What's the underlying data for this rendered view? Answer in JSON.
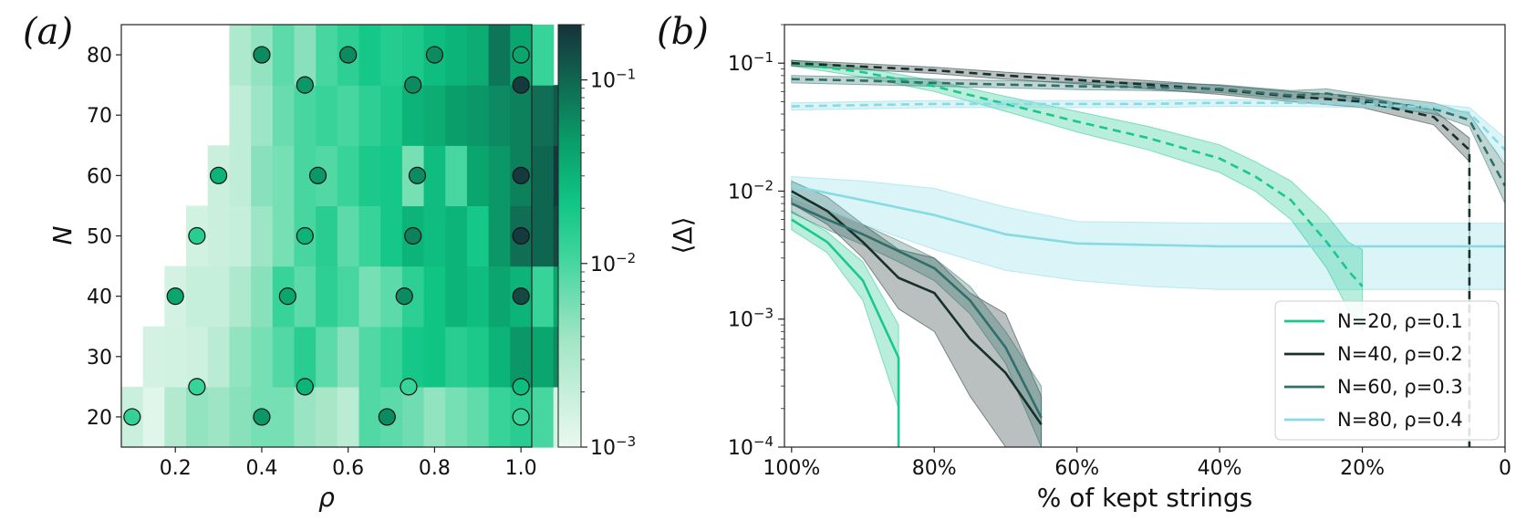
{
  "colors": {
    "n20": "#19c88a",
    "n40": "#17302c",
    "n60": "#2e6f6b",
    "n80": "#86dbe3"
  },
  "chart_data": [
    {
      "type": "heatmap",
      "panel_label": "(a)",
      "xlabel": "ρ",
      "ylabel": "N",
      "x_ticks": [
        "0.2",
        "0.4",
        "0.6",
        "0.8",
        "1.0"
      ],
      "y_ticks": [
        "20",
        "30",
        "40",
        "50",
        "60",
        "70",
        "80"
      ],
      "colorbar": {
        "scale": "log",
        "range": [
          0.001,
          0.2
        ],
        "ticks": [
          {
            "base": "10",
            "exp": "−3",
            "value": 0.001
          },
          {
            "base": "10",
            "exp": "−2",
            "value": 0.01
          },
          {
            "base": "10",
            "exp": "−1",
            "value": 0.1
          }
        ]
      },
      "rows": [
        {
          "N": 20,
          "x_start": 0.1,
          "values": [
            0.0018,
            0.0012,
            0.0028,
            0.0045,
            0.004,
            0.005,
            0.006,
            0.006,
            0.0042,
            0.0035,
            0.0025,
            0.009,
            0.008,
            0.0065,
            0.0045,
            0.006,
            0.0075,
            0.012,
            0.015,
            0.01,
            0.0015
          ]
        },
        {
          "N": 30,
          "x_start": 0.15,
          "values": [
            0.0015,
            0.0016,
            0.0017,
            0.0025,
            0.0045,
            0.006,
            0.009,
            0.015,
            0.008,
            0.005,
            0.009,
            0.012,
            0.02,
            0.022,
            0.015,
            0.018,
            0.03,
            0.05,
            0.04,
            0.06
          ]
        },
        {
          "N": 40,
          "x_start": 0.2,
          "values": [
            0.0015,
            0.002,
            0.002,
            0.003,
            0.005,
            0.012,
            0.008,
            0.014,
            0.01,
            0.006,
            0.008,
            0.014,
            0.022,
            0.03,
            0.025,
            0.04,
            0.03,
            0.012,
            0.04
          ]
        },
        {
          "N": 50,
          "x_start": 0.25,
          "values": [
            0.0016,
            0.0018,
            0.002,
            0.004,
            0.006,
            0.01,
            0.015,
            0.008,
            0.012,
            0.02,
            0.03,
            0.025,
            0.03,
            0.02,
            0.05,
            0.09,
            0.1,
            0.15
          ]
        },
        {
          "N": 60,
          "x_start": 0.3,
          "values": [
            0.0018,
            0.0022,
            0.005,
            0.006,
            0.01,
            0.009,
            0.012,
            0.018,
            0.02,
            0.006,
            0.025,
            0.01,
            0.04,
            0.05,
            0.07,
            0.1,
            0.18
          ]
        },
        {
          "N": 70,
          "x_start": 0.35,
          "values": [
            0.0022,
            0.004,
            0.007,
            0.01,
            0.012,
            0.01,
            0.014,
            0.018,
            0.03,
            0.035,
            0.045,
            0.05,
            0.06,
            0.07,
            0.09,
            0.12
          ]
        },
        {
          "N": 80,
          "x_start": 0.35,
          "values": [
            0.003,
            0.0045,
            0.008,
            0.005,
            0.01,
            0.014,
            0.02,
            0.016,
            0.018,
            0.025,
            0.03,
            0.035,
            0.08,
            0.04,
            0.012
          ]
        }
      ],
      "points": [
        {
          "rho": 0.1,
          "N": 20,
          "value": 0.013
        },
        {
          "rho": 0.25,
          "N": 25,
          "value": 0.012
        },
        {
          "rho": 0.4,
          "N": 20,
          "value": 0.05
        },
        {
          "rho": 0.5,
          "N": 25,
          "value": 0.03
        },
        {
          "rho": 0.69,
          "N": 20,
          "value": 0.06
        },
        {
          "rho": 0.74,
          "N": 25,
          "value": 0.012
        },
        {
          "rho": 1.0,
          "N": 20,
          "value": 0.012
        },
        {
          "rho": 1.0,
          "N": 25,
          "value": 0.025
        },
        {
          "rho": 0.2,
          "N": 40,
          "value": 0.04
        },
        {
          "rho": 0.46,
          "N": 40,
          "value": 0.04
        },
        {
          "rho": 0.73,
          "N": 40,
          "value": 0.06
        },
        {
          "rho": 1.0,
          "N": 40,
          "value": 0.15
        },
        {
          "rho": 0.25,
          "N": 50,
          "value": 0.015
        },
        {
          "rho": 0.5,
          "N": 50,
          "value": 0.03
        },
        {
          "rho": 0.75,
          "N": 50,
          "value": 0.07
        },
        {
          "rho": 1.0,
          "N": 50,
          "value": 0.18
        },
        {
          "rho": 0.3,
          "N": 60,
          "value": 0.03
        },
        {
          "rho": 0.53,
          "N": 60,
          "value": 0.05
        },
        {
          "rho": 0.76,
          "N": 60,
          "value": 0.06
        },
        {
          "rho": 1.0,
          "N": 60,
          "value": 0.18
        },
        {
          "rho": 0.5,
          "N": 75,
          "value": 0.05
        },
        {
          "rho": 0.75,
          "N": 75,
          "value": 0.06
        },
        {
          "rho": 1.0,
          "N": 75,
          "value": 0.18
        },
        {
          "rho": 0.4,
          "N": 80,
          "value": 0.06
        },
        {
          "rho": 0.6,
          "N": 80,
          "value": 0.06
        },
        {
          "rho": 0.8,
          "N": 80,
          "value": 0.06
        },
        {
          "rho": 1.0,
          "N": 80,
          "value": 0.04
        }
      ]
    },
    {
      "type": "line",
      "panel_label": "(b)",
      "xlabel": "% of kept strings",
      "ylabel": "⟨Δ⟩",
      "x_ticks": [
        "100%",
        "80%",
        "60%",
        "40%",
        "20%",
        "0"
      ],
      "x_tick_values": [
        100,
        80,
        60,
        40,
        20,
        0
      ],
      "xlim": [
        101,
        0
      ],
      "y_scale": "log",
      "ylim": [
        0.0001,
        0.2
      ],
      "y_ticks": [
        {
          "base": "10",
          "exp": "−4",
          "value": 0.0001
        },
        {
          "base": "10",
          "exp": "−3",
          "value": 0.001
        },
        {
          "base": "10",
          "exp": "−2",
          "value": 0.01
        },
        {
          "base": "10",
          "exp": "−1",
          "value": 0.1
        }
      ],
      "legend_position": "lower-right",
      "series": [
        {
          "name": "N=20, ρ=0.1",
          "legend": true,
          "color_key": "n20",
          "style": "solid",
          "x": [
            100,
            95,
            90,
            85,
            85
          ],
          "y": [
            0.006,
            0.004,
            0.002,
            0.0005,
            0.0001
          ],
          "lo": [
            0.005,
            0.0033,
            0.0014,
            0.0002,
            0.0001
          ],
          "hi": [
            0.007,
            0.0048,
            0.0028,
            0.0009,
            0.0009
          ]
        },
        {
          "name": "N=40, ρ=0.2",
          "legend": true,
          "color_key": "n40",
          "style": "solid",
          "x": [
            100,
            95,
            90,
            85,
            80,
            75,
            70,
            65
          ],
          "y": [
            0.01,
            0.007,
            0.004,
            0.0021,
            0.0016,
            0.0007,
            0.00038,
            0.00015
          ],
          "lo": [
            0.008,
            0.0055,
            0.003,
            0.0012,
            0.0008,
            0.00025,
            0.0001,
            0.0001
          ],
          "hi": [
            0.012,
            0.009,
            0.0055,
            0.0035,
            0.003,
            0.0016,
            0.0011,
            0.00025
          ]
        },
        {
          "name": "N=60, ρ=0.3",
          "legend": true,
          "color_key": "n60",
          "style": "solid",
          "x": [
            100,
            95,
            90,
            85,
            80,
            75,
            70,
            65
          ],
          "y": [
            0.008,
            0.006,
            0.0046,
            0.0034,
            0.0025,
            0.0014,
            0.0006,
            0.00017
          ],
          "lo": [
            0.0068,
            0.005,
            0.0038,
            0.0028,
            0.002,
            0.0011,
            0.00045,
            0.0001
          ],
          "hi": [
            0.0093,
            0.0071,
            0.0055,
            0.0041,
            0.003,
            0.0018,
            0.0008,
            0.0003
          ]
        },
        {
          "name": "N=80, ρ=0.4",
          "legend": true,
          "color_key": "n80",
          "style": "solid",
          "x": [
            100,
            90,
            80,
            70,
            60,
            50,
            40,
            30,
            20,
            10,
            0
          ],
          "y": [
            0.011,
            0.0085,
            0.0065,
            0.0046,
            0.0039,
            0.0038,
            0.0037,
            0.0037,
            0.0037,
            0.0037,
            0.0037
          ],
          "lo": [
            0.009,
            0.0055,
            0.0035,
            0.0024,
            0.002,
            0.0018,
            0.0017,
            0.0017,
            0.0017,
            0.0017,
            0.0017
          ],
          "hi": [
            0.013,
            0.012,
            0.0105,
            0.0075,
            0.0058,
            0.0057,
            0.0056,
            0.0056,
            0.0056,
            0.0056,
            0.0056
          ]
        },
        {
          "name": "",
          "legend": false,
          "color_key": "n20",
          "style": "dashed",
          "x": [
            100,
            90,
            80,
            70,
            60,
            50,
            40,
            35,
            30,
            25,
            22,
            20
          ],
          "y": [
            0.1,
            0.085,
            0.066,
            0.048,
            0.035,
            0.026,
            0.018,
            0.013,
            0.0085,
            0.004,
            0.0024,
            0.0018
          ],
          "lo": [
            0.095,
            0.078,
            0.06,
            0.042,
            0.029,
            0.021,
            0.014,
            0.01,
            0.006,
            0.0025,
            0.0012,
            0.0008
          ],
          "hi": [
            0.106,
            0.092,
            0.073,
            0.055,
            0.042,
            0.032,
            0.023,
            0.017,
            0.012,
            0.0065,
            0.004,
            0.0035
          ]
        },
        {
          "name": "",
          "legend": false,
          "color_key": "n40",
          "style": "dashed",
          "x": [
            100,
            90,
            80,
            70,
            60,
            50,
            40,
            30,
            20,
            10,
            5,
            5
          ],
          "y": [
            0.1,
            0.094,
            0.088,
            0.08,
            0.074,
            0.068,
            0.062,
            0.055,
            0.05,
            0.038,
            0.021,
            0.0001
          ],
          "lo": [
            0.095,
            0.089,
            0.083,
            0.075,
            0.069,
            0.063,
            0.057,
            0.05,
            0.045,
            0.033,
            0.017,
            0.0001
          ],
          "hi": [
            0.105,
            0.099,
            0.093,
            0.085,
            0.079,
            0.073,
            0.067,
            0.06,
            0.055,
            0.043,
            0.026,
            0.026
          ]
        },
        {
          "name": "",
          "legend": false,
          "color_key": "n60",
          "style": "dashed",
          "x": [
            100,
            90,
            80,
            70,
            60,
            50,
            40,
            30,
            25,
            20,
            10,
            5,
            0
          ],
          "y": [
            0.075,
            0.073,
            0.07,
            0.068,
            0.066,
            0.065,
            0.063,
            0.056,
            0.058,
            0.052,
            0.044,
            0.036,
            0.011
          ],
          "lo": [
            0.07,
            0.068,
            0.066,
            0.064,
            0.062,
            0.061,
            0.059,
            0.052,
            0.054,
            0.048,
            0.04,
            0.032,
            0.008
          ],
          "hi": [
            0.08,
            0.078,
            0.075,
            0.073,
            0.071,
            0.07,
            0.068,
            0.061,
            0.063,
            0.057,
            0.049,
            0.04,
            0.016
          ]
        },
        {
          "name": "",
          "legend": false,
          "color_key": "n80",
          "style": "dashed",
          "x": [
            100,
            90,
            80,
            70,
            60,
            50,
            40,
            30,
            20,
            10,
            5,
            0
          ],
          "y": [
            0.046,
            0.047,
            0.048,
            0.048,
            0.048,
            0.048,
            0.049,
            0.049,
            0.048,
            0.045,
            0.041,
            0.021
          ],
          "lo": [
            0.043,
            0.044,
            0.045,
            0.045,
            0.045,
            0.045,
            0.046,
            0.046,
            0.045,
            0.042,
            0.037,
            0.017
          ],
          "hi": [
            0.049,
            0.05,
            0.051,
            0.051,
            0.051,
            0.051,
            0.052,
            0.052,
            0.051,
            0.048,
            0.045,
            0.026
          ]
        }
      ]
    }
  ]
}
